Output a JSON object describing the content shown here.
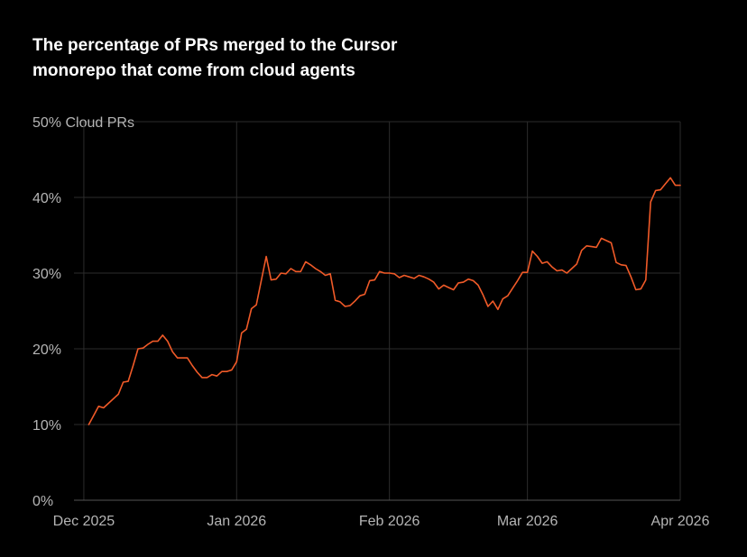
{
  "title_lines": [
    "The percentage of PRs merged to the Cursor",
    "monorepo that come from cloud agents"
  ],
  "colors": {
    "background": "#000000",
    "line": "#f05a28",
    "grid": "#2c2c2c",
    "tick_text": "#b5b5b5"
  },
  "chart_data": {
    "type": "line",
    "title": "The percentage of PRs merged to the Cursor monorepo that come from cloud agents",
    "ylabel": "Cloud PRs",
    "y_unit": "%",
    "ylim": [
      0,
      50
    ],
    "xlim": [
      "2025-11-29",
      "2026-04-01"
    ],
    "grid": true,
    "x_ticks": [
      {
        "label": "Dec 2025",
        "date": "2025-12-01"
      },
      {
        "label": "Jan 2026",
        "date": "2026-01-01"
      },
      {
        "label": "Feb 2026",
        "date": "2026-02-01"
      },
      {
        "label": "Mar 2026",
        "date": "2026-03-01"
      },
      {
        "label": "Apr 2026",
        "date": "2026-04-01"
      }
    ],
    "y_ticks": [
      {
        "label": "0%",
        "value": 0
      },
      {
        "label": "10%",
        "value": 10
      },
      {
        "label": "20%",
        "value": 20
      },
      {
        "label": "30%",
        "value": 30
      },
      {
        "label": "40%",
        "value": 40
      },
      {
        "label": "50% Cloud PRs",
        "value": 50
      }
    ],
    "series": [
      {
        "x": [
          "2025-12-02",
          "2025-12-03",
          "2025-12-04",
          "2025-12-05",
          "2025-12-06",
          "2025-12-07",
          "2025-12-08",
          "2025-12-09",
          "2025-12-10",
          "2025-12-11",
          "2025-12-12",
          "2025-12-13",
          "2025-12-14",
          "2025-12-15",
          "2025-12-16",
          "2025-12-17",
          "2025-12-18",
          "2025-12-19",
          "2025-12-20",
          "2025-12-21",
          "2025-12-22",
          "2025-12-23",
          "2025-12-24",
          "2025-12-25",
          "2025-12-26",
          "2025-12-27",
          "2025-12-28",
          "2025-12-29",
          "2025-12-30",
          "2025-12-31",
          "2026-01-01",
          "2026-01-02",
          "2026-01-03",
          "2026-01-04",
          "2026-01-05",
          "2026-01-06",
          "2026-01-07",
          "2026-01-08",
          "2026-01-09",
          "2026-01-10",
          "2026-01-11",
          "2026-01-12",
          "2026-01-13",
          "2026-01-14",
          "2026-01-15",
          "2026-01-16",
          "2026-01-17",
          "2026-01-18",
          "2026-01-19",
          "2026-01-20",
          "2026-01-21",
          "2026-01-22",
          "2026-01-23",
          "2026-01-24",
          "2026-01-25",
          "2026-01-26",
          "2026-01-27",
          "2026-01-28",
          "2026-01-29",
          "2026-01-30",
          "2026-01-31",
          "2026-02-01",
          "2026-02-02",
          "2026-02-03",
          "2026-02-04",
          "2026-02-05",
          "2026-02-06",
          "2026-02-07",
          "2026-02-08",
          "2026-02-09",
          "2026-02-10",
          "2026-02-11",
          "2026-02-12",
          "2026-02-13",
          "2026-02-14",
          "2026-02-15",
          "2026-02-16",
          "2026-02-17",
          "2026-02-18",
          "2026-02-19",
          "2026-02-20",
          "2026-02-21",
          "2026-02-22",
          "2026-02-23",
          "2026-02-24",
          "2026-02-25",
          "2026-02-26",
          "2026-02-27",
          "2026-02-28",
          "2026-03-01",
          "2026-03-02",
          "2026-03-03",
          "2026-03-04",
          "2026-03-05",
          "2026-03-06",
          "2026-03-07",
          "2026-03-08",
          "2026-03-09",
          "2026-03-10",
          "2026-03-11",
          "2026-03-12",
          "2026-03-13",
          "2026-03-14",
          "2026-03-15",
          "2026-03-16",
          "2026-03-17",
          "2026-03-18",
          "2026-03-19",
          "2026-03-20",
          "2026-03-21",
          "2026-03-22",
          "2026-03-23",
          "2026-03-24",
          "2026-03-25",
          "2026-03-26",
          "2026-03-27",
          "2026-03-28",
          "2026-03-29",
          "2026-03-30",
          "2026-03-31",
          "2026-04-01"
        ],
        "y": [
          10.0,
          11.2,
          12.4,
          12.2,
          12.8,
          13.4,
          14.0,
          15.6,
          15.7,
          17.8,
          20.0,
          20.1,
          20.6,
          21.0,
          21.0,
          21.8,
          21.0,
          19.6,
          18.8,
          18.8,
          18.8,
          17.8,
          16.9,
          16.2,
          16.2,
          16.6,
          16.4,
          17.0,
          17.0,
          17.2,
          18.3,
          22.1,
          22.6,
          25.3,
          25.8,
          29.0,
          32.2,
          29.1,
          29.2,
          30.0,
          29.9,
          30.6,
          30.2,
          30.2,
          31.5,
          31.1,
          30.6,
          30.2,
          29.7,
          29.9,
          26.4,
          26.2,
          25.6,
          25.7,
          26.3,
          27.0,
          27.2,
          29.0,
          29.1,
          30.2,
          30.0,
          30.0,
          29.9,
          29.4,
          29.7,
          29.5,
          29.3,
          29.7,
          29.5,
          29.2,
          28.8,
          27.9,
          28.4,
          28.1,
          27.8,
          28.7,
          28.8,
          29.2,
          29.0,
          28.4,
          27.1,
          25.6,
          26.3,
          25.2,
          26.6,
          27.0,
          28.0,
          29.0,
          30.1,
          30.1,
          32.9,
          32.2,
          31.3,
          31.5,
          30.8,
          30.3,
          30.4,
          30.0,
          30.6,
          31.2,
          33.0,
          33.6,
          33.5,
          33.4,
          34.6,
          34.3,
          34.0,
          31.4,
          31.1,
          31.0,
          29.5,
          27.8,
          27.9,
          29.1,
          39.4,
          40.9,
          41.0,
          41.8,
          42.6,
          41.6,
          41.6
        ]
      }
    ]
  }
}
